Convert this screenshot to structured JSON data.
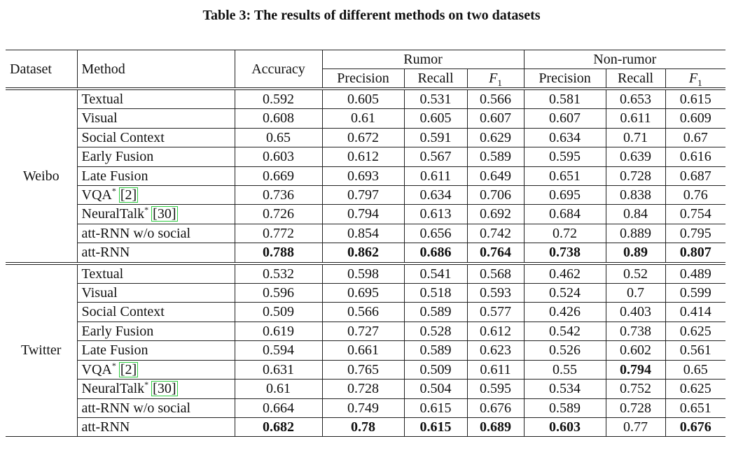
{
  "title": "Table 3: The results of different methods on two datasets",
  "table": {
    "header": {
      "dataset": "Dataset",
      "method": "Method",
      "accuracy": "Accuracy",
      "groups": [
        "Rumor",
        "Non-rumor"
      ],
      "subheaders": [
        [
          {
            "text": "Precision"
          },
          {
            "text": "Recall"
          },
          {
            "text": "F",
            "sub": "1"
          }
        ],
        [
          {
            "text": "Precision"
          },
          {
            "text": "Recall"
          },
          {
            "text": "F",
            "sub": "1"
          }
        ]
      ]
    },
    "sections": [
      {
        "dataset": "Weibo",
        "rows": [
          {
            "method": "Textual",
            "cells": [
              "0.592",
              "0.605",
              "0.531",
              "0.566",
              "0.581",
              "0.653",
              "0.615"
            ]
          },
          {
            "method": "Visual",
            "cells": [
              "0.608",
              "0.61",
              "0.605",
              "0.607",
              "0.607",
              "0.611",
              "0.609"
            ]
          },
          {
            "method": "Social Context",
            "cells": [
              "0.65",
              "0.672",
              "0.591",
              "0.629",
              "0.634",
              "0.71",
              "0.67"
            ]
          },
          {
            "method": "Early Fusion",
            "cells": [
              "0.603",
              "0.612",
              "0.567",
              "0.589",
              "0.595",
              "0.639",
              "0.616"
            ]
          },
          {
            "method": "Late Fusion",
            "cells": [
              "0.669",
              "0.693",
              "0.611",
              "0.649",
              "0.651",
              "0.728",
              "0.687"
            ]
          },
          {
            "method": "VQA",
            "sup": "*",
            "cite": "[2]",
            "cells": [
              "0.736",
              "0.797",
              "0.634",
              "0.706",
              "0.695",
              "0.838",
              "0.76"
            ]
          },
          {
            "method": "NeuralTalk",
            "sup": "*",
            "cite": "[30]",
            "cells": [
              "0.726",
              "0.794",
              "0.613",
              "0.692",
              "0.684",
              "0.84",
              "0.754"
            ]
          },
          {
            "method": "att-RNN w/o social",
            "cells": [
              "0.772",
              "0.854",
              "0.656",
              "0.742",
              "0.72",
              "0.889",
              "0.795"
            ]
          },
          {
            "method": "att-RNN",
            "cells": [
              "0.788",
              "0.862",
              "0.686",
              "0.764",
              "0.738",
              "0.89",
              "0.807"
            ],
            "bold": [
              true,
              true,
              true,
              true,
              true,
              true,
              true
            ]
          }
        ]
      },
      {
        "dataset": "Twitter",
        "rows": [
          {
            "method": "Textual",
            "cells": [
              "0.532",
              "0.598",
              "0.541",
              "0.568",
              "0.462",
              "0.52",
              "0.489"
            ]
          },
          {
            "method": "Visual",
            "cells": [
              "0.596",
              "0.695",
              "0.518",
              "0.593",
              "0.524",
              "0.7",
              "0.599"
            ]
          },
          {
            "method": "Social Context",
            "cells": [
              "0.509",
              "0.566",
              "0.589",
              "0.577",
              "0.426",
              "0.403",
              "0.414"
            ]
          },
          {
            "method": "Early Fusion",
            "cells": [
              "0.619",
              "0.727",
              "0.528",
              "0.612",
              "0.542",
              "0.738",
              "0.625"
            ]
          },
          {
            "method": "Late Fusion",
            "cells": [
              "0.594",
              "0.661",
              "0.589",
              "0.623",
              "0.526",
              "0.602",
              "0.561"
            ]
          },
          {
            "method": "VQA",
            "sup": "*",
            "cite": "[2]",
            "cells": [
              "0.631",
              "0.765",
              "0.509",
              "0.611",
              "0.55",
              "0.794",
              "0.65"
            ],
            "bold": [
              false,
              false,
              false,
              false,
              false,
              true,
              false
            ]
          },
          {
            "method": "NeuralTalk",
            "sup": "*",
            "cite": "[30]",
            "cells": [
              "0.61",
              "0.728",
              "0.504",
              "0.595",
              "0.534",
              "0.752",
              "0.625"
            ]
          },
          {
            "method": "att-RNN w/o social",
            "cells": [
              "0.664",
              "0.749",
              "0.615",
              "0.676",
              "0.589",
              "0.728",
              "0.651"
            ]
          },
          {
            "method": "att-RNN",
            "cells": [
              "0.682",
              "0.78",
              "0.615",
              "0.689",
              "0.603",
              "0.77",
              "0.676"
            ],
            "bold": [
              true,
              true,
              true,
              true,
              true,
              false,
              true
            ]
          }
        ]
      }
    ]
  }
}
